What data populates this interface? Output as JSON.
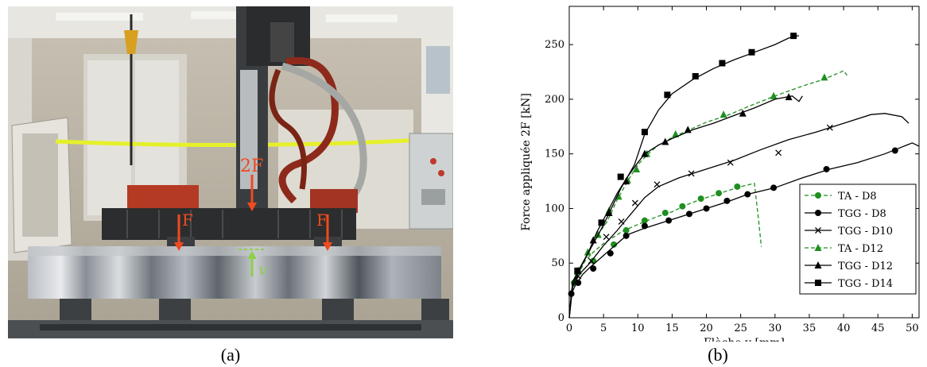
{
  "captions": {
    "left": "(a)",
    "right": "(b)"
  },
  "photo": {
    "label_force_total": "2F",
    "label_force_left": "F",
    "label_force_right": "F",
    "label_deflection": "v",
    "arrow_color": "#f04a1e",
    "deflection_color": "#8ed04a"
  },
  "chart_data": {
    "type": "line",
    "title": "",
    "xlabel": "Flèche v [mm]",
    "ylabel": "Force appliquée 2F [kN]",
    "xlim": [
      0,
      51
    ],
    "ylim": [
      0,
      285
    ],
    "xticks": [
      0,
      5,
      10,
      15,
      20,
      25,
      30,
      35,
      40,
      45,
      50
    ],
    "yticks": [
      0,
      50,
      100,
      150,
      200,
      250
    ],
    "grid": false,
    "legend_position": "bottom-right",
    "series": [
      {
        "name": "TA - D8",
        "color": "#1f8f1f",
        "dashed": true,
        "marker": "circle",
        "x": [
          0,
          0.3,
          0.8,
          1.5,
          2.3,
          3.5,
          5,
          6.5,
          8,
          9.5,
          11,
          13,
          15,
          17,
          19,
          21,
          23,
          25,
          27,
          27.6,
          28
        ],
        "y": [
          0,
          25,
          33,
          42,
          52,
          60,
          68,
          74,
          80,
          84,
          88,
          93,
          97,
          103,
          108,
          112,
          116,
          120,
          123,
          90,
          65
        ],
        "markers_x": [
          0.7,
          3.5,
          6.5,
          8.3,
          11,
          14,
          16.5,
          19.2,
          21.8,
          24.5
        ],
        "markers_y": [
          32,
          52,
          67,
          80,
          89,
          96,
          102,
          109,
          114,
          120
        ]
      },
      {
        "name": "TGG - D8",
        "color": "#000000",
        "dashed": false,
        "marker": "circle",
        "x": [
          0,
          0.3,
          1,
          2,
          3,
          5,
          7,
          8.5,
          11,
          14,
          17,
          20,
          23,
          26,
          30,
          34,
          38,
          42,
          46,
          48,
          50,
          51
        ],
        "y": [
          0,
          22,
          31,
          40,
          46,
          57,
          68,
          76,
          82,
          88,
          94,
          100,
          106,
          113,
          119,
          128,
          136,
          142,
          150,
          155,
          160,
          157
        ],
        "markers_x": [
          0.3,
          1.3,
          3.5,
          6,
          8.3,
          11,
          14.5,
          17.5,
          20,
          23,
          26,
          29.8,
          37.5,
          47.5
        ],
        "markers_y": [
          22,
          32,
          45,
          59,
          75,
          84,
          89,
          95,
          100,
          107,
          113,
          119,
          136,
          153
        ]
      },
      {
        "name": "TGG - D10",
        "color": "#000000",
        "dashed": false,
        "marker": "cross",
        "x": [
          0,
          0.5,
          1.5,
          3,
          5,
          7,
          9,
          11,
          13,
          16,
          20,
          24,
          28,
          32,
          36,
          40,
          44,
          46,
          48.5,
          49.5
        ],
        "y": [
          0,
          28,
          40,
          50,
          66,
          80,
          95,
          110,
          120,
          128,
          136,
          144,
          154,
          163,
          170,
          178,
          186,
          187,
          184,
          178
        ],
        "markers_x": [
          1.3,
          3.2,
          5.4,
          7.6,
          9.6,
          12.8,
          17.8,
          23.5,
          30.5,
          38
        ],
        "markers_y": [
          38,
          52,
          74,
          88,
          105,
          122,
          132,
          142,
          151,
          174
        ]
      },
      {
        "name": "TA - D12",
        "color": "#1f8f1f",
        "dashed": true,
        "marker": "triangle",
        "x": [
          0,
          0.5,
          1.5,
          2.7,
          4,
          5.5,
          7,
          8.5,
          10,
          11.5,
          13,
          15,
          17.5,
          20,
          23,
          26,
          30,
          34,
          37,
          40,
          40.5
        ],
        "y": [
          0,
          32,
          44,
          58,
          74,
          88,
          108,
          125,
          140,
          150,
          158,
          165,
          172,
          179,
          185,
          193,
          203,
          212,
          218,
          226,
          222
        ],
        "markers_x": [
          1.2,
          2.7,
          4.2,
          5.8,
          7.2,
          8.5,
          9.8,
          11.3,
          15.5,
          22.5,
          29.8,
          37.2
        ],
        "markers_y": [
          42,
          60,
          76,
          98,
          111,
          126,
          136,
          150,
          168,
          186,
          203,
          220
        ]
      },
      {
        "name": "TGG - D12",
        "color": "#000000",
        "dashed": false,
        "marker": "triangle",
        "x": [
          0,
          0.5,
          1.5,
          2.8,
          4,
          5.5,
          7,
          8.5,
          10,
          11,
          13,
          15,
          18,
          21,
          24,
          27,
          30,
          32.5,
          33.5,
          34
        ],
        "y": [
          0,
          33,
          45,
          60,
          78,
          96,
          114,
          129,
          142,
          150,
          158,
          164,
          172,
          178,
          185,
          192,
          200,
          203,
          198,
          203
        ],
        "markers_x": [
          1.3,
          3.5,
          5.8,
          8.3,
          11,
          14,
          17.3,
          25.3,
          32
        ],
        "markers_y": [
          43,
          71,
          96,
          125,
          150,
          161,
          172,
          187,
          202
        ]
      },
      {
        "name": "TGG - D14",
        "color": "#000000",
        "dashed": false,
        "marker": "square",
        "x": [
          0,
          0.5,
          1.5,
          3,
          5,
          7.5,
          9.5,
          11,
          13,
          15,
          18,
          21,
          24,
          27,
          30,
          32,
          33,
          33.5
        ],
        "y": [
          0,
          30,
          44,
          62,
          85,
          118,
          140,
          168,
          190,
          205,
          218,
          228,
          236,
          243,
          250,
          256,
          258,
          258
        ],
        "markers_x": [
          1.2,
          4.7,
          7.5,
          11,
          14.3,
          18.4,
          22.3,
          26.6,
          32.7
        ],
        "markers_y": [
          43,
          87,
          129,
          170,
          204,
          221,
          233,
          243,
          258
        ]
      }
    ]
  }
}
